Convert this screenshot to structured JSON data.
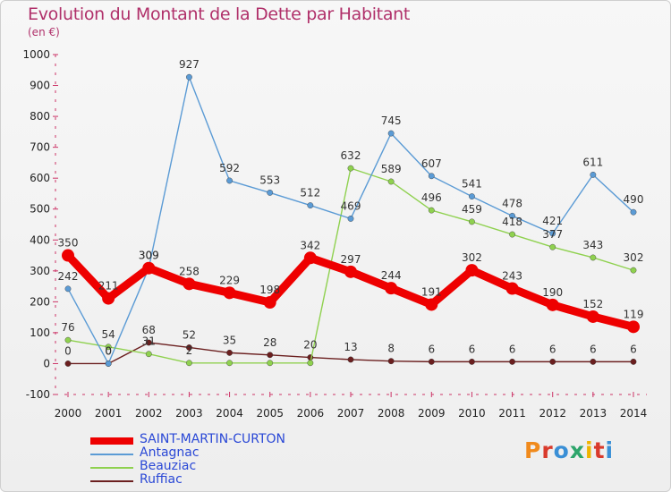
{
  "title": "Evolution du Montant de la Dette par Habitant",
  "subtitle": "(en €)",
  "logo": {
    "text": "Proxiti",
    "colors": [
      "#f08a1c",
      "#d93a2c",
      "#3a8fd6",
      "#2da56b",
      "#f0b400",
      "#d93a2c",
      "#3a8fd6"
    ]
  },
  "chart_data": {
    "type": "line",
    "x": [
      "2000",
      "2001",
      "2002",
      "2003",
      "2004",
      "2005",
      "2006",
      "2007",
      "2008",
      "2009",
      "2010",
      "2011",
      "2012",
      "2013",
      "2014"
    ],
    "ylim": [
      -100,
      1000
    ],
    "yticks": [
      "-100",
      "0",
      "100",
      "200",
      "300",
      "400",
      "500",
      "600",
      "700",
      "800",
      "900",
      "1000"
    ],
    "grid": false,
    "legend_position": "bottom-left",
    "series": [
      {
        "name": "SAINT-MARTIN-CURTON",
        "color": "#ee0000",
        "values": [
          350,
          211,
          309,
          258,
          229,
          198,
          342,
          297,
          244,
          191,
          302,
          243,
          190,
          152,
          119
        ],
        "labels": [
          "350",
          "211",
          "309",
          "258",
          "229",
          "198",
          "342",
          "297",
          "244",
          "191",
          "302",
          "243",
          "190",
          "152",
          "119"
        ]
      },
      {
        "name": "Antagnac",
        "color": "#5b9bd5",
        "values": [
          242,
          0,
          309,
          927,
          592,
          553,
          512,
          469,
          745,
          607,
          541,
          478,
          421,
          611,
          490
        ],
        "labels": [
          "242",
          "0",
          "309",
          "927",
          "592",
          "553",
          "512",
          "469",
          "745",
          "607",
          "541",
          "478",
          "421",
          "611",
          "490"
        ]
      },
      {
        "name": "Beauziac",
        "color": "#8fd14f",
        "values": [
          76,
          54,
          31,
          2,
          2,
          2,
          2,
          632,
          589,
          496,
          459,
          418,
          377,
          343,
          302
        ],
        "labels": [
          "76",
          "54",
          "31",
          "2",
          "",
          "",
          "",
          "632",
          "589",
          "496",
          "459",
          "418",
          "377",
          "343",
          "302"
        ]
      },
      {
        "name": "Ruffiac",
        "color": "#6b1f1f",
        "values": [
          0,
          0,
          68,
          52,
          35,
          28,
          20,
          13,
          8,
          6,
          6,
          6,
          6,
          6,
          6
        ],
        "labels": [
          "0",
          "0",
          "68",
          "52",
          "35",
          "28",
          "20",
          "13",
          "8",
          "6",
          "6",
          "6",
          "6",
          "6",
          "6"
        ]
      }
    ]
  }
}
